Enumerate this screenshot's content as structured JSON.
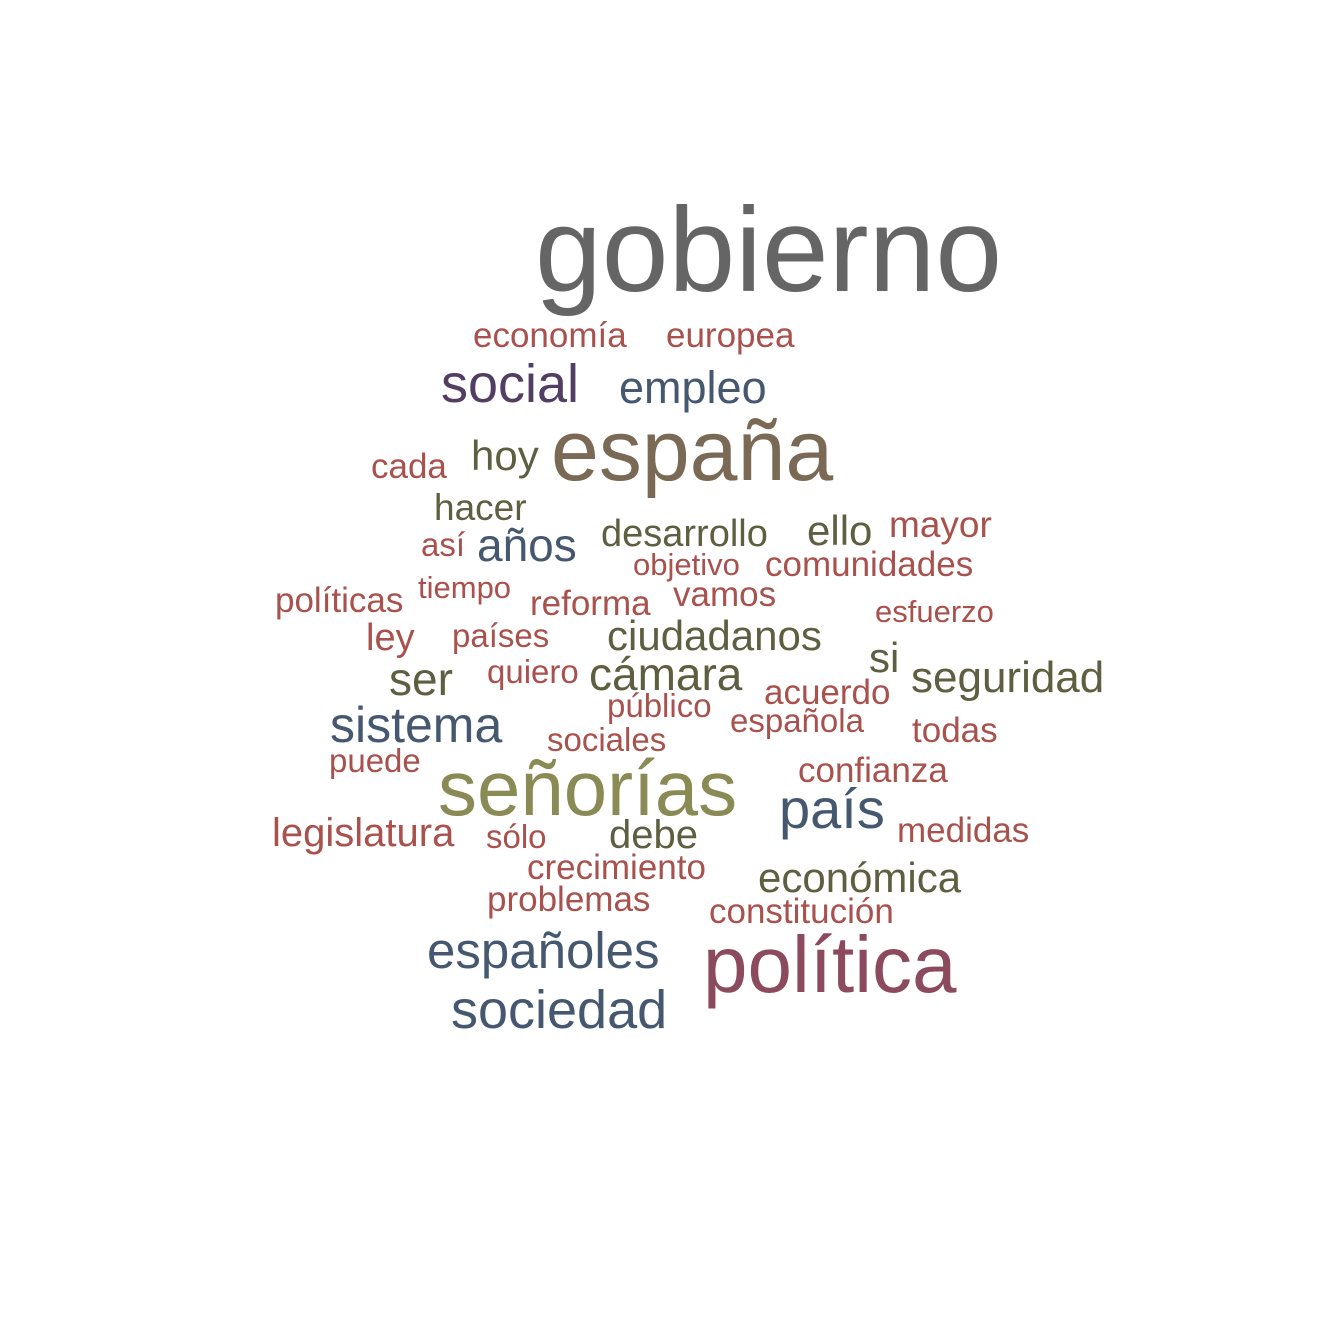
{
  "colors": {
    "grey": "#656565",
    "brown": "#7a6a55",
    "olive": "#8a8a55",
    "rust": "#a8514d",
    "slate": "#45586f",
    "plum": "#523d63",
    "darkolive": "#5e5e40",
    "wine": "#8c4a5e"
  },
  "words": [
    {
      "text": "gobierno",
      "color": "grey"
    },
    {
      "text": "economía",
      "color": "rust"
    },
    {
      "text": "europea",
      "color": "rust"
    },
    {
      "text": "social",
      "color": "plum"
    },
    {
      "text": "empleo",
      "color": "slate"
    },
    {
      "text": "cada",
      "color": "rust"
    },
    {
      "text": "hoy",
      "color": "darkolive"
    },
    {
      "text": "españa",
      "color": "brown"
    },
    {
      "text": "hacer",
      "color": "darkolive"
    },
    {
      "text": "así",
      "color": "rust"
    },
    {
      "text": "años",
      "color": "slate"
    },
    {
      "text": "desarrollo",
      "color": "darkolive"
    },
    {
      "text": "ello",
      "color": "darkolive"
    },
    {
      "text": "mayor",
      "color": "rust"
    },
    {
      "text": "objetivo",
      "color": "rust"
    },
    {
      "text": "comunidades",
      "color": "rust"
    },
    {
      "text": "políticas",
      "color": "rust"
    },
    {
      "text": "tiempo",
      "color": "rust"
    },
    {
      "text": "reforma",
      "color": "rust"
    },
    {
      "text": "vamos",
      "color": "rust"
    },
    {
      "text": "esfuerzo",
      "color": "rust"
    },
    {
      "text": "ley",
      "color": "rust"
    },
    {
      "text": "países",
      "color": "rust"
    },
    {
      "text": "ciudadanos",
      "color": "darkolive"
    },
    {
      "text": "si",
      "color": "darkolive"
    },
    {
      "text": "ser",
      "color": "darkolive"
    },
    {
      "text": "quiero",
      "color": "rust"
    },
    {
      "text": "cámara",
      "color": "darkolive"
    },
    {
      "text": "acuerdo",
      "color": "rust"
    },
    {
      "text": "seguridad",
      "color": "darkolive"
    },
    {
      "text": "público",
      "color": "rust"
    },
    {
      "text": "sistema",
      "color": "slate"
    },
    {
      "text": "española",
      "color": "rust"
    },
    {
      "text": "todas",
      "color": "rust"
    },
    {
      "text": "sociales",
      "color": "rust"
    },
    {
      "text": "puede",
      "color": "rust"
    },
    {
      "text": "confianza",
      "color": "rust"
    },
    {
      "text": "señorías",
      "color": "olive"
    },
    {
      "text": "país",
      "color": "slate"
    },
    {
      "text": "legislatura",
      "color": "rust"
    },
    {
      "text": "sólo",
      "color": "rust"
    },
    {
      "text": "debe",
      "color": "darkolive"
    },
    {
      "text": "medidas",
      "color": "rust"
    },
    {
      "text": "crecimiento",
      "color": "rust"
    },
    {
      "text": "económica",
      "color": "darkolive"
    },
    {
      "text": "problemas",
      "color": "rust"
    },
    {
      "text": "constitución",
      "color": "rust"
    },
    {
      "text": "españoles",
      "color": "slate"
    },
    {
      "text": "política",
      "color": "wine"
    },
    {
      "text": "sociedad",
      "color": "slate"
    }
  ]
}
